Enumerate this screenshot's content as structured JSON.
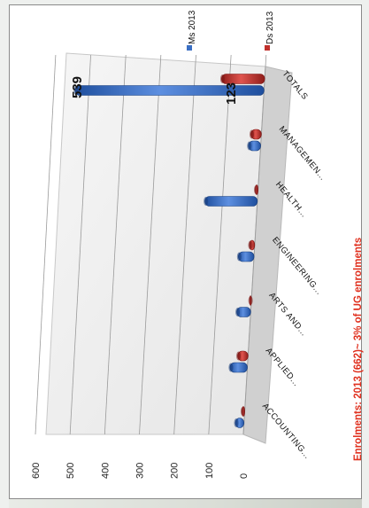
{
  "chart_data": {
    "type": "bar",
    "orientation": "rotated-90",
    "categories": [
      "ACCOUNTING...",
      "APPLIED...",
      "ARTS AND...",
      "ENGINEERING...",
      "HEALTH...",
      "MANAGEMEN...",
      "TOTALS"
    ],
    "series": [
      {
        "name": "Ms 2013",
        "values": [
          25,
          50,
          40,
          45,
          150,
          35,
          539
        ],
        "color": "#3a6fc4"
      },
      {
        "name": "Ds 2013",
        "values": [
          8,
          30,
          5,
          15,
          8,
          30,
          123
        ],
        "color": "#c0302c"
      }
    ],
    "y_ticks": [
      "0",
      "100",
      "200",
      "300",
      "400",
      "500",
      "600"
    ],
    "ylim": [
      0,
      600
    ],
    "data_labels": {
      "ms_totals": "539",
      "ds_totals": "123"
    },
    "legend": {
      "position": "top-right",
      "ms_label": "Ms 2013",
      "ds_label": "Ds 2013"
    },
    "annotation": "Enrolments: 2013 (662)~ 3% of UG enrolments",
    "grid": true
  }
}
